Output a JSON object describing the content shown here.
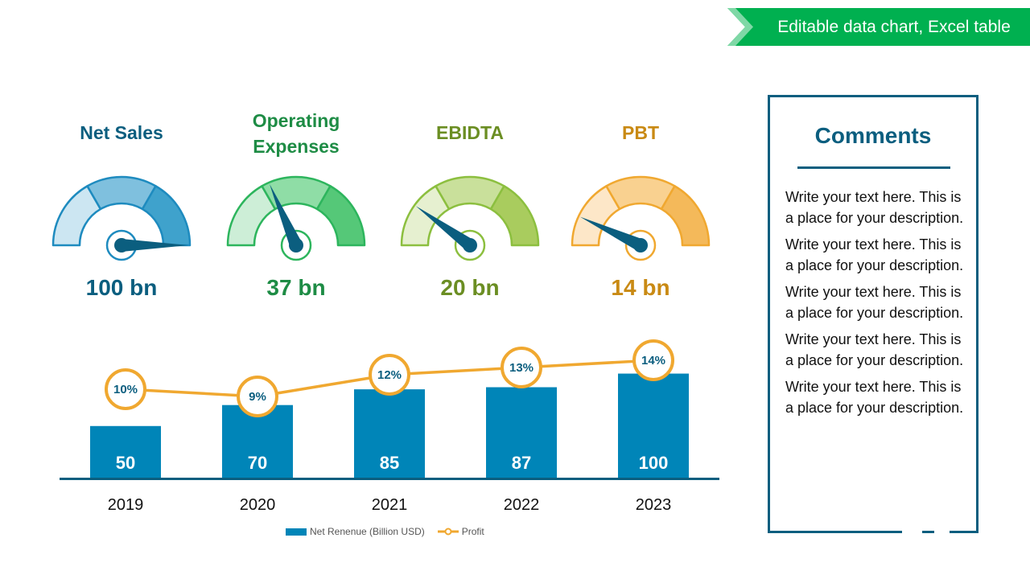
{
  "banner": {
    "text": "Editable data chart, Excel table",
    "color": "#00B050"
  },
  "gauges": [
    {
      "title": "Net Sales",
      "value_label": "100 bn",
      "level": 1.0,
      "color": "#0B5E7F",
      "segments": [
        "#CCE6F2",
        "#7FC0DE",
        "#3FA2CC"
      ],
      "stroke": "#1E8BBF",
      "needle": "#0B5E7F",
      "ring": "#1E8BBF"
    },
    {
      "title": "Operating Expenses",
      "value_label": "37 bn",
      "level": 0.37,
      "color": "#1E8C45",
      "segments": [
        "#CDEED7",
        "#8FDDA6",
        "#55C878"
      ],
      "stroke": "#2DB55D",
      "needle": "#0B5E7F",
      "ring": "#2DB55D"
    },
    {
      "title": "EBIDTA",
      "value_label": "20 bn",
      "level": 0.2,
      "color": "#6B8E23",
      "segments": [
        "#E6F0D0",
        "#C9E09B",
        "#A9CC5E"
      ],
      "stroke": "#8CBF3F",
      "needle": "#0B5E7F",
      "ring": "#8CBF3F"
    },
    {
      "title": "PBT",
      "value_label": "14 bn",
      "level": 0.14,
      "color": "#C98A14",
      "segments": [
        "#FDE7C8",
        "#F9D190",
        "#F4B95A"
      ],
      "stroke": "#F0A830",
      "needle": "#0B5E7F",
      "ring": "#F0A830"
    }
  ],
  "chart_data": {
    "type": "bar",
    "categories": [
      "2019",
      "2020",
      "2021",
      "2022",
      "2023"
    ],
    "series": [
      {
        "name": "Net Renenue (Billion USD)",
        "type": "bar",
        "values": [
          50,
          70,
          85,
          87,
          100
        ],
        "color": "#0085B8"
      },
      {
        "name": "Profit",
        "type": "line",
        "values": [
          10,
          9,
          12,
          13,
          14
        ],
        "unit": "%",
        "color": "#F0A830"
      }
    ],
    "legend_position": "bottom",
    "grid": false
  },
  "comments": {
    "title": "Comments",
    "items": [
      "Write your text here. This is a place for your description.",
      "Write your text here. This is a place for your description.",
      "Write your text here. This is a place for your description.",
      "Write your text here. This is a place for your description.",
      "Write your text here. This is a place for your description."
    ]
  }
}
